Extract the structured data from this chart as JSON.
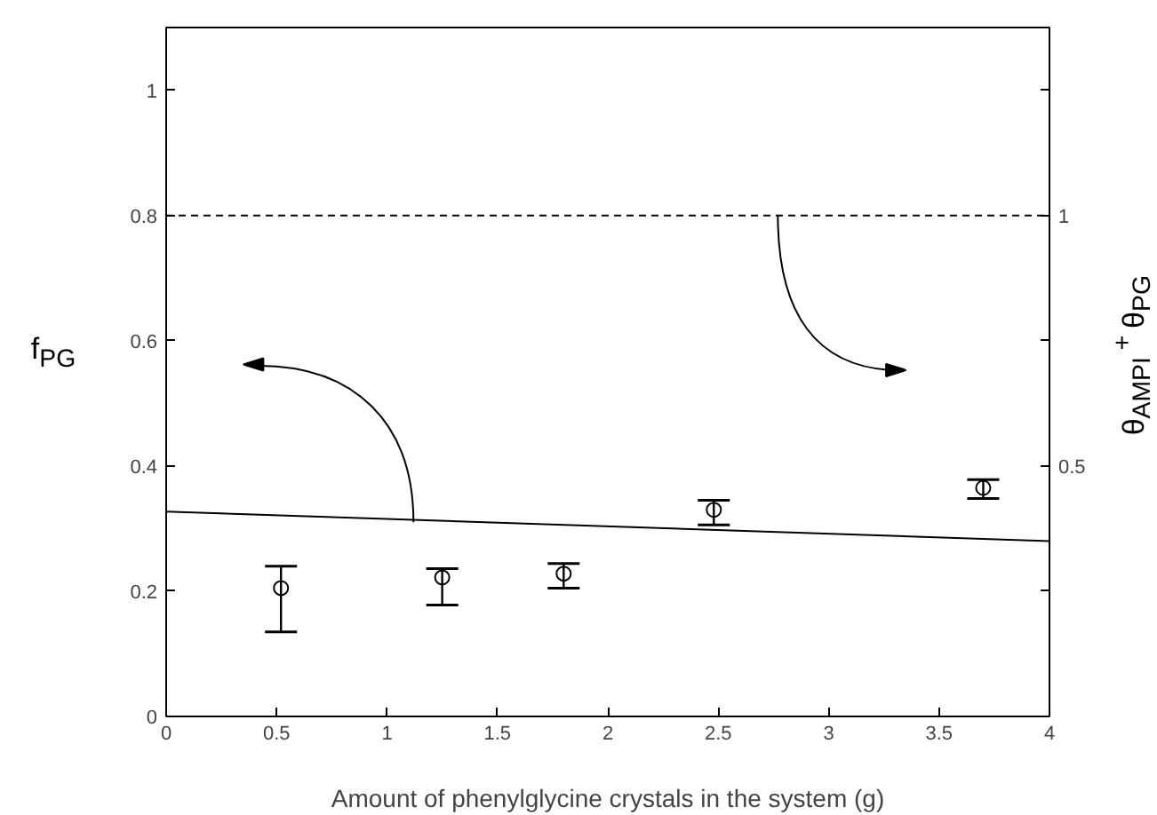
{
  "chart_data": {
    "type": "scatter",
    "xlabel": "Amount of phenylglycine crystals in the system (g)",
    "ylabel": "f$_{PG}$",
    "y2label": "θ$_{AMPI}$$^{ + }$θ$_{PG}$",
    "xlim": [
      0,
      4
    ],
    "xticks": [
      0,
      0.5,
      1,
      1.5,
      2,
      2.5,
      3,
      3.5,
      4
    ],
    "ylim": [
      0,
      1.1
    ],
    "yticks": [
      0,
      0.2,
      0.4,
      0.6,
      0.8,
      1
    ],
    "y2lim": [
      0,
      1.375
    ],
    "y2ticks": [
      {
        "value": 0.25,
        "label": null
      },
      0.5,
      {
        "value": 0.75,
        "label": null
      },
      1,
      {
        "value": 1.25,
        "label": null
      }
    ],
    "grid": false,
    "series": [
      {
        "type": "line",
        "x": [
          0,
          4
        ],
        "values": [
          0.327,
          0.28
        ],
        "color": "#000000",
        "line_style": "solid"
      },
      {
        "type": "line",
        "axis": "y2",
        "x": [
          0,
          4
        ],
        "values": [
          1,
          1
        ],
        "color": "#000000",
        "line_style": "dashed"
      },
      {
        "x": [
          0.52,
          1.25,
          1.8,
          2.48,
          3.7
        ],
        "values": [
          0.205,
          0.222,
          0.228,
          0.33,
          0.365
        ],
        "errors": [
          [
            0.135,
            0.24
          ],
          [
            0.178,
            0.236
          ],
          [
            0.205,
            0.244
          ],
          [
            0.306,
            0.345
          ],
          [
            0.348,
            0.378
          ]
        ],
        "color": "#000000",
        "marker": "circle"
      }
    ]
  }
}
